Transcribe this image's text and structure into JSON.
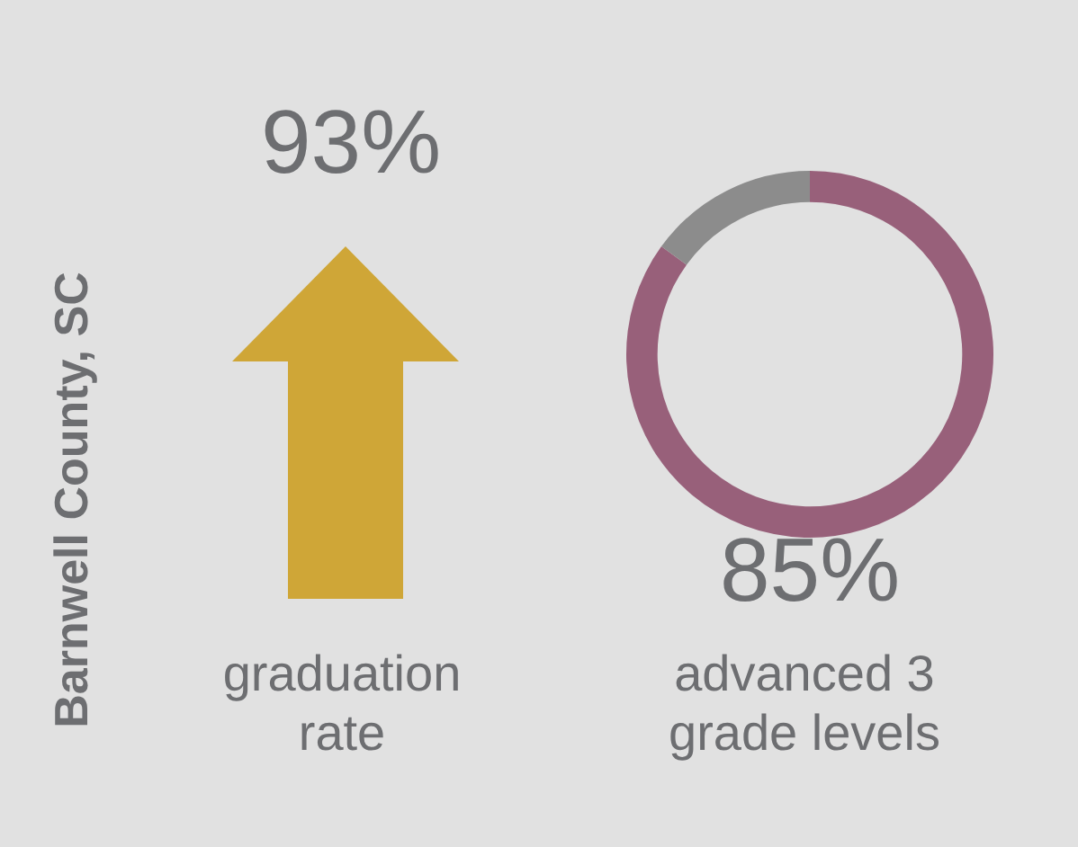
{
  "chart_data": [
    {
      "type": "other",
      "title": "Barnwell County, SC",
      "annotations": [
        "93%",
        "graduation rate"
      ]
    },
    {
      "type": "donut",
      "categories": [
        "advanced 3 grade levels",
        null
      ],
      "values": [
        85,
        15
      ],
      "colors": [
        "#98607a",
        "#8c8c8c"
      ],
      "value_labels": [
        "85%",
        null
      ]
    }
  ]
}
